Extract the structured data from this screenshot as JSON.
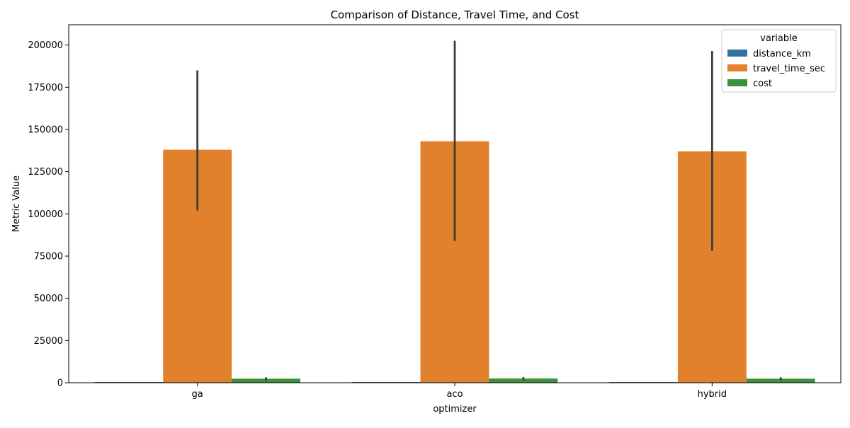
{
  "chart_data": {
    "type": "bar",
    "title": "Comparison of Distance, Travel Time, and Cost",
    "xlabel": "optimizer",
    "ylabel": "Metric Value",
    "categories": [
      "ga",
      "aco",
      "hybrid"
    ],
    "ylim": [
      0,
      212000
    ],
    "yticks": [
      0,
      25000,
      50000,
      75000,
      100000,
      125000,
      150000,
      175000,
      200000
    ],
    "grid": false,
    "legend": {
      "title": "variable",
      "placement": "top-right"
    },
    "series": [
      {
        "name": "distance_km",
        "color": "#3274a1",
        "values": [
          120,
          125,
          118
        ],
        "ci_low": [
          80,
          80,
          80
        ],
        "ci_high": [
          160,
          170,
          165
        ]
      },
      {
        "name": "travel_time_sec",
        "color": "#e1812c",
        "values": [
          138000,
          143000,
          137000
        ],
        "ci_low": [
          102000,
          84000,
          78000
        ],
        "ci_high": [
          185000,
          202500,
          196500
        ]
      },
      {
        "name": "cost",
        "color": "#3a923a",
        "values": [
          2400,
          2500,
          2400
        ],
        "ci_low": [
          1300,
          1300,
          1300
        ],
        "ci_high": [
          3200,
          3300,
          3200
        ]
      }
    ]
  }
}
